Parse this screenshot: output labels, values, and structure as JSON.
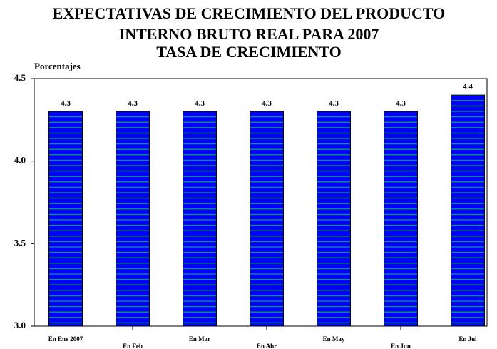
{
  "chart_data": {
    "type": "bar",
    "title": [
      "EXPECTATIVAS DE CRECIMIENTO DEL PRODUCTO",
      "INTERNO BRUTO REAL PARA 2007",
      "TASA DE CRECIMIENTO"
    ],
    "ylabel": "Porcentajes",
    "categories": [
      "En Ene 2007",
      "En Feb",
      "En Mar",
      "En Abr",
      "En May",
      "En Jun",
      "En Jul"
    ],
    "values": [
      4.3,
      4.3,
      4.3,
      4.3,
      4.3,
      4.3,
      4.4
    ],
    "color": "#0000ff",
    "ylim": [
      3.0,
      4.5
    ],
    "yticks": [
      {
        "value": 3.0,
        "label": "3.0"
      },
      {
        "value": 3.5,
        "label": "3.5"
      },
      {
        "value": 4.0,
        "label": "4.0"
      },
      {
        "value": 4.5,
        "label": "4.5"
      }
    ],
    "grid": false
  }
}
